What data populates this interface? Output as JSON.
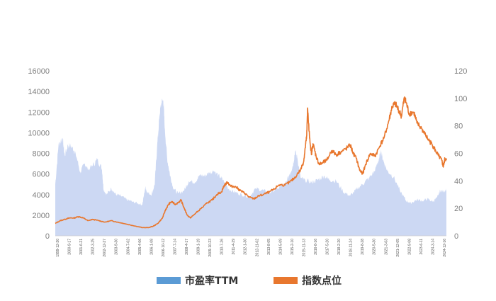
{
  "chart_data": {
    "type": "area",
    "title": "",
    "left_axis": {
      "ticks": [
        "0",
        "2000",
        "4000",
        "6000",
        "8000",
        "10000",
        "12000",
        "14000",
        "16000"
      ],
      "ylim": [
        0,
        16000
      ]
    },
    "right_axis": {
      "ticks": [
        "0",
        "20",
        "40",
        "60",
        "80",
        "100",
        "120"
      ],
      "ylim": [
        0,
        120
      ]
    },
    "x_tick_labels": [
      "1999-12-30",
      "2000-9-17",
      "2001-6-21",
      "2002-3-25",
      "2002-12-27",
      "2003-9-30",
      "2004-7-02",
      "2005-4-06",
      "2006-1-08",
      "2006-10-12",
      "2007-7-14",
      "2008-4-17",
      "2009-1-19",
      "2009-10-23",
      "2010-7-26",
      "2011-4-29",
      "2012-1-30",
      "2012-11-02",
      "2013-8-05",
      "2014-5-09",
      "2015-2-10",
      "2015-11-13",
      "2016-8-16",
      "2017-5-20",
      "2018-2-20",
      "2018-11-24",
      "2019-8-28",
      "2020-5-30",
      "2021-3-03",
      "2021-12-05",
      "2022-9-08",
      "2023-6-11",
      "2024-3-14",
      "2024-12-16"
    ],
    "x_tick_labels_display": [
      "1999-12-30",
      "2000-9-17",
      "2001-6-21",
      "2002-3-25",
      "2002-12-27",
      "2003-9-30",
      "2004-7-02",
      "2005-4-06",
      "2006-1-08",
      "2006-10-12",
      "2007-7-14",
      "2008-4-17",
      "2009-1-19",
      "2009-10-23",
      "2010-7-26",
      "2011-4-29",
      "2012-1-30",
      "2012-11-02",
      "2013-8-05",
      "2014-5-09",
      "2015-2-10",
      "2015-11-13",
      "2016-8-16",
      "2017-5-20",
      "2018-2-20",
      "2018-11-24",
      "2019-8-28",
      "2020-5-30",
      "2021-3-03",
      "2021-12-05",
      "2022-9-08",
      "2023-6-11",
      "2024-3-14",
      "2024-12-16"
    ],
    "x_range": [
      1999.99,
      2025.2
    ],
    "series": [
      {
        "name": "市盈率TTM",
        "axis": "left",
        "kind": "area",
        "color": "#c9d6f2",
        "legend_color": "#5b9bd5",
        "points": [
          [
            1999.99,
            5000
          ],
          [
            2000.2,
            8800
          ],
          [
            2000.45,
            9500
          ],
          [
            2000.6,
            7800
          ],
          [
            2000.8,
            8800
          ],
          [
            2001.1,
            8600
          ],
          [
            2001.3,
            8000
          ],
          [
            2001.6,
            6200
          ],
          [
            2001.9,
            7000
          ],
          [
            2002.1,
            6400
          ],
          [
            2002.4,
            6800
          ],
          [
            2002.7,
            7400
          ],
          [
            2003.0,
            6500
          ],
          [
            2003.1,
            4500
          ],
          [
            2003.3,
            4000
          ],
          [
            2003.6,
            4600
          ],
          [
            2003.9,
            4000
          ],
          [
            2004.2,
            3900
          ],
          [
            2004.6,
            3500
          ],
          [
            2005.0,
            3300
          ],
          [
            2005.4,
            3100
          ],
          [
            2005.6,
            3000
          ],
          [
            2005.8,
            4800
          ],
          [
            2005.9,
            4200
          ],
          [
            2006.2,
            4000
          ],
          [
            2006.4,
            5000
          ],
          [
            2006.55,
            8500
          ],
          [
            2006.7,
            11500
          ],
          [
            2006.8,
            12800
          ],
          [
            2006.95,
            13200
          ],
          [
            2007.05,
            10500
          ],
          [
            2007.2,
            7500
          ],
          [
            2007.4,
            5800
          ],
          [
            2007.6,
            4600
          ],
          [
            2007.9,
            4100
          ],
          [
            2008.3,
            4400
          ],
          [
            2008.6,
            5300
          ],
          [
            2009.0,
            5200
          ],
          [
            2009.3,
            5900
          ],
          [
            2009.6,
            5800
          ],
          [
            2009.9,
            6100
          ],
          [
            2010.2,
            6300
          ],
          [
            2010.5,
            5900
          ],
          [
            2010.8,
            5400
          ],
          [
            2011.2,
            4500
          ],
          [
            2011.6,
            4200
          ],
          [
            2012.0,
            4000
          ],
          [
            2012.5,
            3800
          ],
          [
            2012.9,
            4600
          ],
          [
            2013.4,
            4400
          ],
          [
            2013.8,
            4200
          ],
          [
            2014.3,
            4600
          ],
          [
            2014.8,
            5000
          ],
          [
            2015.1,
            6000
          ],
          [
            2015.3,
            6800
          ],
          [
            2015.45,
            8200
          ],
          [
            2015.6,
            7500
          ],
          [
            2015.8,
            5600
          ],
          [
            2016.1,
            5400
          ],
          [
            2016.5,
            5200
          ],
          [
            2016.9,
            5400
          ],
          [
            2017.3,
            5800
          ],
          [
            2017.7,
            5400
          ],
          [
            2018.1,
            5300
          ],
          [
            2018.6,
            4200
          ],
          [
            2019.0,
            3900
          ],
          [
            2019.4,
            4500
          ],
          [
            2019.8,
            5000
          ],
          [
            2020.2,
            5600
          ],
          [
            2020.6,
            6300
          ],
          [
            2020.85,
            7500
          ],
          [
            2021.0,
            8200
          ],
          [
            2021.1,
            7400
          ],
          [
            2021.4,
            6300
          ],
          [
            2021.8,
            5700
          ],
          [
            2022.2,
            4400
          ],
          [
            2022.6,
            3400
          ],
          [
            2022.9,
            3200
          ],
          [
            2023.3,
            3500
          ],
          [
            2023.7,
            3400
          ],
          [
            2024.0,
            3600
          ],
          [
            2024.3,
            3300
          ],
          [
            2024.6,
            3700
          ],
          [
            2024.8,
            4400
          ],
          [
            2025.0,
            4300
          ],
          [
            2025.2,
            4500
          ]
        ]
      },
      {
        "name": "指数点位",
        "axis": "right",
        "kind": "line",
        "color": "#e8772e",
        "points": [
          [
            1999.99,
            9
          ],
          [
            2000.3,
            11
          ],
          [
            2000.6,
            12
          ],
          [
            2000.9,
            13
          ],
          [
            2001.2,
            13
          ],
          [
            2001.5,
            14
          ],
          [
            2001.8,
            13
          ],
          [
            2002.1,
            11
          ],
          [
            2002.4,
            12
          ],
          [
            2002.8,
            11
          ],
          [
            2003.2,
            10
          ],
          [
            2003.6,
            11
          ],
          [
            2004.0,
            10
          ],
          [
            2004.4,
            9
          ],
          [
            2004.8,
            8
          ],
          [
            2005.2,
            7
          ],
          [
            2005.6,
            6
          ],
          [
            2006.0,
            6
          ],
          [
            2006.3,
            7
          ],
          [
            2006.6,
            9
          ],
          [
            2006.9,
            13
          ],
          [
            2007.1,
            19
          ],
          [
            2007.3,
            23
          ],
          [
            2007.5,
            25
          ],
          [
            2007.7,
            23
          ],
          [
            2007.9,
            24
          ],
          [
            2008.1,
            26
          ],
          [
            2008.3,
            20
          ],
          [
            2008.5,
            15
          ],
          [
            2008.7,
            13
          ],
          [
            2009.0,
            16
          ],
          [
            2009.4,
            20
          ],
          [
            2009.8,
            24
          ],
          [
            2010.1,
            26
          ],
          [
            2010.4,
            30
          ],
          [
            2010.7,
            32
          ],
          [
            2010.9,
            37
          ],
          [
            2011.1,
            39
          ],
          [
            2011.3,
            36
          ],
          [
            2011.6,
            36
          ],
          [
            2011.9,
            33
          ],
          [
            2012.2,
            31
          ],
          [
            2012.5,
            28
          ],
          [
            2012.8,
            27
          ],
          [
            2013.1,
            29
          ],
          [
            2013.4,
            30
          ],
          [
            2013.8,
            32
          ],
          [
            2014.1,
            34
          ],
          [
            2014.4,
            37
          ],
          [
            2014.8,
            37
          ],
          [
            2015.1,
            39
          ],
          [
            2015.4,
            42
          ],
          [
            2015.8,
            48
          ],
          [
            2016.0,
            54
          ],
          [
            2016.1,
            64
          ],
          [
            2016.2,
            73
          ],
          [
            2016.25,
            93
          ],
          [
            2016.35,
            76
          ],
          [
            2016.5,
            59
          ],
          [
            2016.6,
            67
          ],
          [
            2016.8,
            58
          ],
          [
            2017.0,
            52
          ],
          [
            2017.2,
            53
          ],
          [
            2017.5,
            55
          ],
          [
            2017.8,
            62
          ],
          [
            2018.1,
            59
          ],
          [
            2018.4,
            61
          ],
          [
            2018.7,
            63
          ],
          [
            2019.0,
            66
          ],
          [
            2019.2,
            60
          ],
          [
            2019.4,
            56
          ],
          [
            2019.6,
            48
          ],
          [
            2019.8,
            45
          ],
          [
            2020.0,
            52
          ],
          [
            2020.3,
            60
          ],
          [
            2020.6,
            58
          ],
          [
            2020.9,
            65
          ],
          [
            2021.2,
            72
          ],
          [
            2021.5,
            84
          ],
          [
            2021.7,
            94
          ],
          [
            2021.9,
            96
          ],
          [
            2022.1,
            92
          ],
          [
            2022.3,
            87
          ],
          [
            2022.5,
            101
          ],
          [
            2022.6,
            97
          ],
          [
            2022.8,
            89
          ],
          [
            2023.1,
            90
          ],
          [
            2023.3,
            82
          ],
          [
            2023.6,
            78
          ],
          [
            2023.8,
            74
          ],
          [
            2024.1,
            69
          ],
          [
            2024.3,
            66
          ],
          [
            2024.5,
            62
          ],
          [
            2024.7,
            58
          ],
          [
            2024.9,
            55
          ],
          [
            2025.0,
            50
          ],
          [
            2025.1,
            56
          ],
          [
            2025.2,
            55
          ]
        ]
      }
    ],
    "legend_position": "bottom"
  }
}
